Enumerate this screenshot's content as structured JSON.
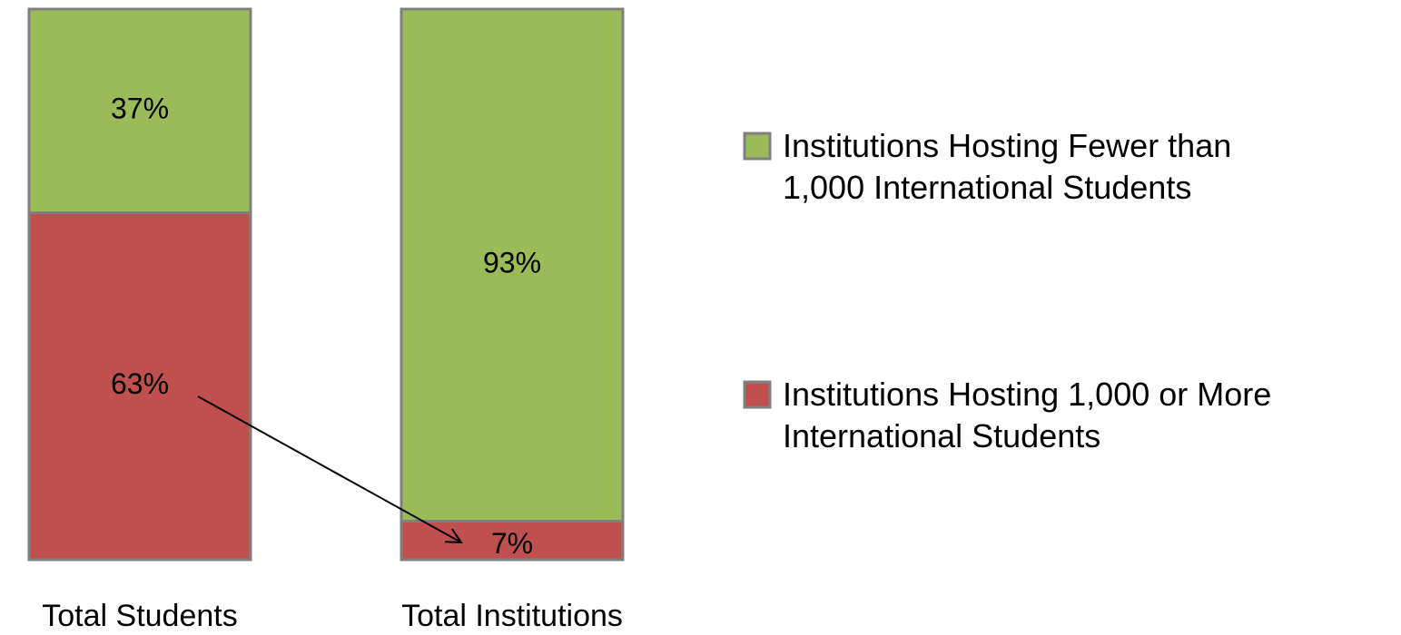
{
  "chart_data": {
    "type": "stacked_bar",
    "categories": [
      "Total Students",
      "Total Institutions"
    ],
    "series": [
      {
        "name": "Institutions Hosting 1,000 or More International Students",
        "color": "#c0504d",
        "values": [
          63,
          7
        ],
        "value_labels": [
          "63%",
          "7%"
        ]
      },
      {
        "name": "Institutions Hosting Fewer than 1,000 International Students",
        "color": "#9bbb59",
        "values": [
          37,
          93
        ],
        "value_labels": [
          "37%",
          "93%"
        ]
      }
    ],
    "legend": "right"
  }
}
